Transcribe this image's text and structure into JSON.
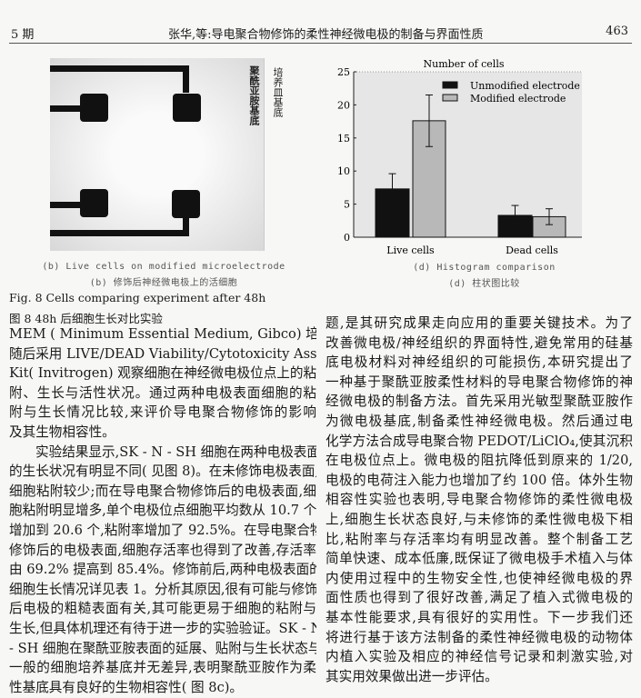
{
  "header": {
    "issue": "5 期",
    "title": "张华,等:导电聚合物修饰的柔性神经微电极的制备与界面性质",
    "page": "463"
  },
  "figure_b": {
    "labels": [
      "聚酰亚胺基底",
      "培养皿基底"
    ],
    "caption_en": "(b) Live cells on modified microelectrode",
    "caption_cn": "(b) 修饰后神经微电极上的活细胞"
  },
  "chart_data": {
    "type": "bar",
    "title": "Number of cells",
    "categories": [
      "Live cells",
      "Dead cells"
    ],
    "ylim": [
      0,
      25
    ],
    "yticks": [
      0,
      5,
      10,
      15,
      20,
      25
    ],
    "legend_position": "top-right",
    "series": [
      {
        "name": "Unmodified electrode",
        "values": [
          7.3,
          3.3
        ],
        "error": [
          2.3,
          1.5
        ],
        "color": "#111111"
      },
      {
        "name": "Modified electrode",
        "values": [
          17.6,
          3.1
        ],
        "error": [
          3.9,
          1.2
        ],
        "color": "#b8b8b8"
      }
    ],
    "caption_en": "(d) Histogram comparison",
    "caption_cn": "(d) 柱状图比较"
  },
  "figure_caption": {
    "en": "Fig. 8   Cells comparing experiment after 48h",
    "cn": "图 8   48h 后细胞生长对比实验"
  },
  "left_column": [
    "MEM ( Minimum Essential Medium, Gibco) 培养基。",
    "随后采用 LIVE/DEAD Viability/Cytotoxicity Assay",
    "Kit( Invitrogen) 观察细胞在神经微电极位点上的粘",
    "附、生长与活性状况。通过两种电极表面细胞的粘",
    "附与生长情况比较,来评价导电聚合物修饰的影响",
    "及其生物相容性。",
    "实验结果显示,SK - N - SH 细胞在两种电极表面",
    "的生长状况有明显不同( 见图 8)。在未修饰电极表面,",
    "细胞粘附较少;而在导电聚合物修饰后的电极表面,细",
    "胞粘附明显增多,单个电极位点细胞平均数从 10.7 个",
    "增加到 20.6 个,粘附率增加了 92.5%。在导电聚合物",
    "修饰后的电极表面,细胞存活率也得到了改善,存活率",
    "由 69.2% 提高到 85.4%。修饰前后,两种电极表面的",
    "细胞生长情况详见表 1。分析其原因,很有可能与修饰",
    "后电极的粗糙表面有关,其可能更易于细胞的粘附与",
    "生长,但具体机理还有待于进一步的实验验证。SK - N",
    "- SH 细胞在聚酰亚胺表面的延展、贴附与生长状态与",
    "一般的细胞培养基底并无差异,表明聚酰亚胺作为柔",
    "性基底具有良好的生物相容性( 图 8c)。"
  ],
  "right_column": [
    "题,是其研究成果走向应用的重要关键技术。为了",
    "改善微电极/神经组织的界面特性,避免常用的硅基",
    "底电极材料对神经组织的可能损伤,本研究提出了",
    "一种基于聚酰亚胺柔性材料的导电聚合物修饰的神",
    "经微电极的制备方法。首先采用光敏型聚酰亚胺作",
    "为微电极基底,制备柔性神经微电极。然后通过电",
    "化学方法合成导电聚合物 PEDOT/LiClO₄,使其沉积",
    "在电极位点上。微电极的阻抗降低到原来的 1/20,",
    "电极的电荷注入能力也增加了约 100 倍。体外生物",
    "相容性实验也表明,导电聚合物修饰的柔性微电极",
    "上,细胞生长状态良好,与未修饰的柔性微电极下相",
    "比,粘附率与存活率均有明显改善。整个制备工艺",
    "简单快速、成本低廉,既保证了微电极手术植入与体",
    "内使用过程中的生物安全性,也使神经微电极的界",
    "面性质也得到了很好改善,满足了植入式微电极的",
    "基本性能要求,具有很好的实用性。下一步我们还",
    "将进行基于该方法制备的柔性神经微电极的动物体",
    "内植入实验及相应的神经信号记录和刺激实验,对",
    "其实用效果做出进一步评估。"
  ]
}
